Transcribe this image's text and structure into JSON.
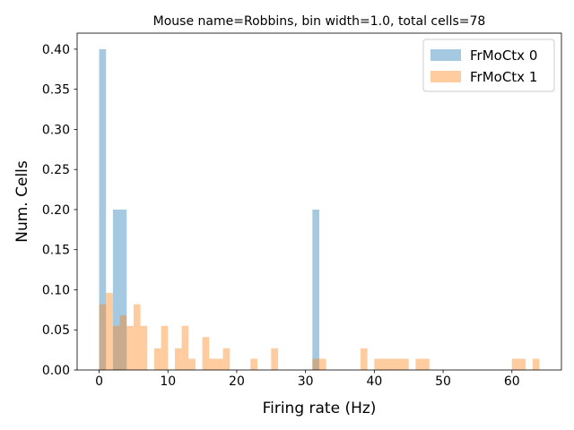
{
  "chart_data": {
    "type": "bar",
    "title": "Mouse name=Robbins, bin width=1.0, total cells=78",
    "xlabel": "Firing rate (Hz)",
    "ylabel": "Num. Cells",
    "xlim": [
      -3.2,
      67.2
    ],
    "ylim": [
      0,
      0.42
    ],
    "xticks": [
      0,
      10,
      20,
      30,
      40,
      50,
      60
    ],
    "yticks": [
      0.0,
      0.05,
      0.1,
      0.15,
      0.2,
      0.25,
      0.3,
      0.35,
      0.4
    ],
    "legend_position": "top-right",
    "bin_width": 1.0,
    "series": [
      {
        "name": "FrMoCtx 0",
        "color": "#1f77b4",
        "alpha": 0.4,
        "bins": [
          {
            "x": 0,
            "y": 0.4
          },
          {
            "x": 2,
            "y": 0.2
          },
          {
            "x": 3,
            "y": 0.2
          },
          {
            "x": 31,
            "y": 0.2
          }
        ]
      },
      {
        "name": "FrMoCtx 1",
        "color": "#ff7f0e",
        "alpha": 0.4,
        "bins": [
          {
            "x": 0,
            "y": 0.082
          },
          {
            "x": 1,
            "y": 0.096
          },
          {
            "x": 2,
            "y": 0.055
          },
          {
            "x": 3,
            "y": 0.068
          },
          {
            "x": 4,
            "y": 0.055
          },
          {
            "x": 5,
            "y": 0.082
          },
          {
            "x": 6,
            "y": 0.055
          },
          {
            "x": 8,
            "y": 0.027
          },
          {
            "x": 9,
            "y": 0.055
          },
          {
            "x": 11,
            "y": 0.027
          },
          {
            "x": 12,
            "y": 0.055
          },
          {
            "x": 13,
            "y": 0.014
          },
          {
            "x": 15,
            "y": 0.041
          },
          {
            "x": 16,
            "y": 0.014
          },
          {
            "x": 17,
            "y": 0.014
          },
          {
            "x": 18,
            "y": 0.027
          },
          {
            "x": 22,
            "y": 0.014
          },
          {
            "x": 25,
            "y": 0.027
          },
          {
            "x": 31,
            "y": 0.014
          },
          {
            "x": 32,
            "y": 0.014
          },
          {
            "x": 38,
            "y": 0.027
          },
          {
            "x": 40,
            "y": 0.014
          },
          {
            "x": 41,
            "y": 0.014
          },
          {
            "x": 42,
            "y": 0.014
          },
          {
            "x": 43,
            "y": 0.014
          },
          {
            "x": 44,
            "y": 0.014
          },
          {
            "x": 46,
            "y": 0.014
          },
          {
            "x": 47,
            "y": 0.014
          },
          {
            "x": 60,
            "y": 0.014
          },
          {
            "x": 61,
            "y": 0.014
          },
          {
            "x": 63,
            "y": 0.014
          }
        ]
      }
    ]
  }
}
